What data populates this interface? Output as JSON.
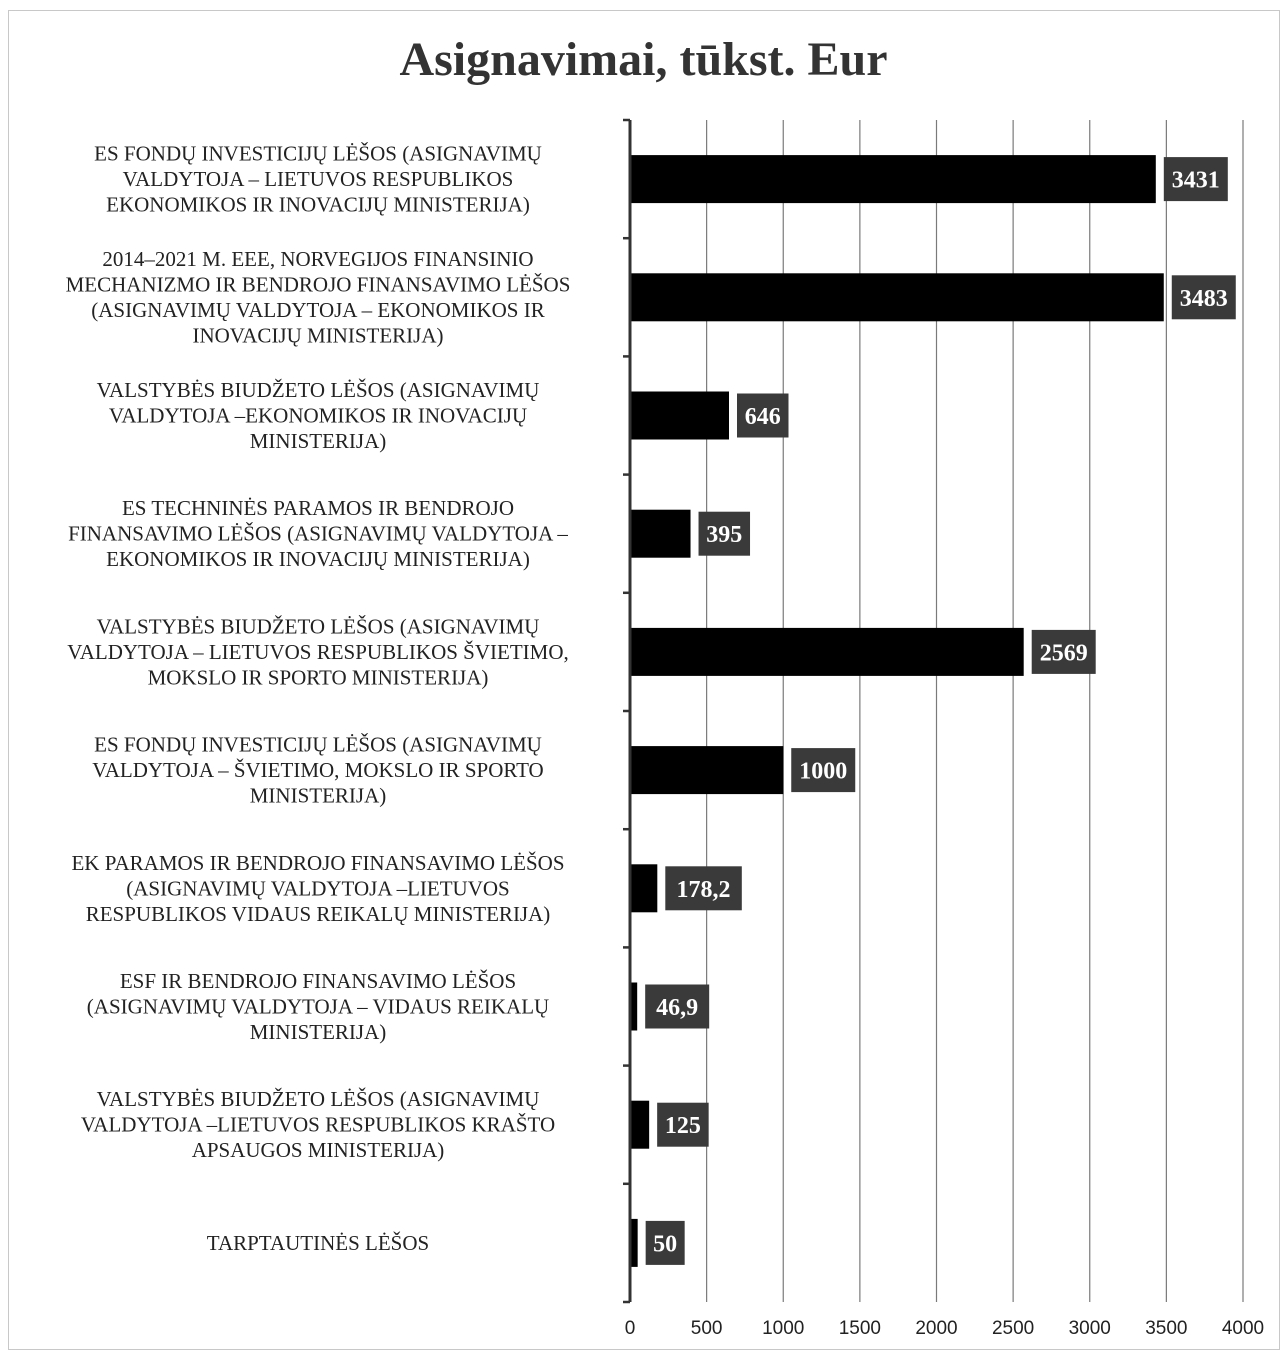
{
  "chart_data": {
    "type": "bar",
    "orientation": "horizontal",
    "title": "Asignavimai, tūkst. Eur",
    "xlabel": "",
    "ylabel": "",
    "xlim": [
      0,
      4000
    ],
    "x_ticks": [
      "0",
      "500",
      "1000",
      "1500",
      "2000",
      "2500",
      "3000",
      "3500",
      "4000"
    ],
    "grid": "vertical",
    "legend": "none",
    "colors": {
      "bar": "#000000",
      "label_box": "#3a3a3a",
      "grid": "#7a7a7a"
    },
    "categories": [
      [
        "ES FONDŲ INVESTICIJŲ LĖŠOS (ASIGNAVIMŲ",
        "VALDYTOJA – LIETUVOS RESPUBLIKOS",
        "EKONOMIKOS IR INOVACIJŲ MINISTERIJA)"
      ],
      [
        "2014–2021 M. EEE, NORVEGIJOS FINANSINIO",
        "MECHANIZMO IR BENDROJO FINANSAVIMO LĖŠOS",
        "(ASIGNAVIMŲ VALDYTOJA – EKONOMIKOS IR",
        "INOVACIJŲ MINISTERIJA)"
      ],
      [
        "VALSTYBĖS BIUDŽETO LĖŠOS (ASIGNAVIMŲ",
        "VALDYTOJA –EKONOMIKOS IR INOVACIJŲ",
        "MINISTERIJA)"
      ],
      [
        "ES TECHNINĖS PARAMOS IR BENDROJO",
        "FINANSAVIMO LĖŠOS (ASIGNAVIMŲ VALDYTOJA –",
        "EKONOMIKOS IR INOVACIJŲ MINISTERIJA)"
      ],
      [
        "VALSTYBĖS BIUDŽETO LĖŠOS (ASIGNAVIMŲ",
        "VALDYTOJA – LIETUVOS RESPUBLIKOS ŠVIETIMO,",
        "MOKSLO IR SPORTO MINISTERIJA)"
      ],
      [
        "ES FONDŲ INVESTICIJŲ LĖŠOS (ASIGNAVIMŲ",
        "VALDYTOJA – ŠVIETIMO, MOKSLO IR SPORTO",
        "MINISTERIJA)"
      ],
      [
        "EK PARAMOS IR BENDROJO FINANSAVIMO LĖŠOS",
        "(ASIGNAVIMŲ VALDYTOJA –LIETUVOS",
        "RESPUBLIKOS VIDAUS REIKALŲ MINISTERIJA)"
      ],
      [
        "ESF IR BENDROJO FINANSAVIMO LĖŠOS",
        "(ASIGNAVIMŲ VALDYTOJA – VIDAUS REIKALŲ",
        "MINISTERIJA)"
      ],
      [
        "VALSTYBĖS BIUDŽETO LĖŠOS (ASIGNAVIMŲ",
        "VALDYTOJA –LIETUVOS RESPUBLIKOS KRAŠTO",
        "APSAUGOS MINISTERIJA)"
      ],
      [
        "TARPTAUTINĖS LĖŠOS"
      ]
    ],
    "values": [
      3431,
      3483,
      646,
      395,
      2569,
      1000,
      178.2,
      46.9,
      125,
      50
    ],
    "data_labels": [
      "3431",
      "3483",
      "646",
      "395",
      "2569",
      "1000",
      "178,2",
      "46,9",
      "125",
      "50"
    ]
  }
}
